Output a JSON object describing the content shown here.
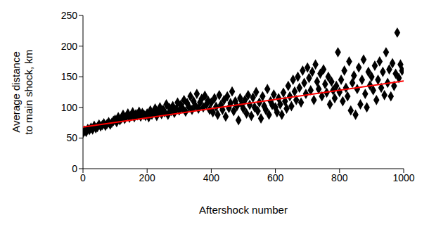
{
  "chart_data": {
    "type": "scatter",
    "xlabel": "Aftershock number",
    "ylabel": [
      "Average distance",
      "to main shock, km"
    ],
    "xlim": [
      0,
      1000
    ],
    "xticks": [
      0,
      200,
      400,
      600,
      800,
      1000
    ],
    "ylim": [
      0,
      250
    ],
    "yticks": [
      0,
      50,
      100,
      150,
      200,
      250
    ],
    "grid": false,
    "series": [
      {
        "type": "scatter",
        "color": "#000000",
        "marker": "diamond",
        "x": [
          0,
          5,
          10,
          15,
          20,
          25,
          30,
          35,
          40,
          45,
          50,
          55,
          60,
          65,
          70,
          75,
          80,
          85,
          90,
          95,
          100,
          105,
          110,
          115,
          120,
          125,
          130,
          135,
          140,
          145,
          150,
          155,
          160,
          165,
          170,
          175,
          180,
          185,
          190,
          195,
          200,
          205,
          210,
          215,
          220,
          225,
          230,
          235,
          240,
          245,
          250,
          255,
          260,
          265,
          270,
          275,
          280,
          285,
          290,
          295,
          300,
          305,
          310,
          315,
          320,
          325,
          330,
          335,
          340,
          345,
          350,
          355,
          360,
          365,
          370,
          375,
          380,
          385,
          390,
          395,
          400,
          405,
          410,
          415,
          420,
          425,
          430,
          435,
          440,
          445,
          450,
          455,
          460,
          465,
          470,
          475,
          480,
          485,
          490,
          495,
          500,
          505,
          510,
          515,
          520,
          525,
          530,
          535,
          540,
          545,
          550,
          555,
          560,
          565,
          570,
          575,
          580,
          585,
          590,
          595,
          600,
          605,
          610,
          615,
          620,
          625,
          630,
          635,
          640,
          645,
          650,
          655,
          660,
          665,
          670,
          675,
          680,
          685,
          690,
          695,
          700,
          705,
          710,
          715,
          720,
          725,
          730,
          735,
          740,
          745,
          750,
          755,
          760,
          765,
          770,
          775,
          780,
          785,
          790,
          795,
          800,
          805,
          810,
          815,
          820,
          825,
          830,
          835,
          840,
          845,
          850,
          855,
          860,
          865,
          870,
          875,
          880,
          885,
          890,
          895,
          900,
          905,
          910,
          915,
          920,
          925,
          930,
          935,
          940,
          945,
          950,
          955,
          960,
          965,
          970,
          975,
          980,
          985,
          990,
          995
        ],
        "values": [
          58,
          62,
          60,
          65,
          63,
          67,
          64,
          70,
          66,
          68,
          72,
          69,
          71,
          74,
          70,
          73,
          76,
          72,
          75,
          78,
          80,
          76,
          84,
          79,
          82,
          88,
          81,
          85,
          90,
          83,
          86,
          92,
          84,
          89,
          87,
          93,
          85,
          91,
          88,
          86,
          90,
          84,
          95,
          88,
          92,
          98,
          86,
          94,
          100,
          89,
          96,
          92,
          105,
          88,
          99,
          94,
          102,
          91,
          97,
          108,
          95,
          104,
          99,
          112,
          93,
          107,
          101,
          118,
          96,
          110,
          103,
          122,
          98,
          108,
          114,
          100,
          119,
          105,
          111,
          96,
          108,
          92,
          115,
          101,
          88,
          120,
          104,
          96,
          112,
          85,
          118,
          99,
          107,
          126,
          94,
          110,
          102,
          79,
          115,
          105,
          98,
          112,
          90,
          120,
          104,
          86,
          116,
          100,
          125,
          94,
          108,
          82,
          118,
          102,
          96,
          130,
          88,
          110,
          104,
          121,
          100,
          92,
          115,
          105,
          88,
          124,
          110,
          98,
          135,
          118,
          102,
          145,
          126,
          112,
          150,
          132,
          108,
          160,
          140,
          122,
          165,
          148,
          128,
          158,
          112,
          170,
          142,
          130,
          155,
          118,
          162,
          138,
          124,
          150,
          105,
          142,
          128,
          115,
          135,
          190,
          125,
          145,
          110,
          160,
          132,
          118,
          175,
          95,
          140,
          152,
          88,
          130,
          165,
          105,
          145,
          178,
          122,
          100,
          158,
          136,
          150,
          128,
          168,
          112,
          145,
          175,
          132,
          158,
          120,
          190,
          140,
          162,
          118,
          172,
          135,
          155,
          222,
          148,
          170,
          160
        ]
      },
      {
        "type": "line",
        "color": "#ff0000",
        "x": [
          0,
          1000
        ],
        "values": [
          68,
          143
        ]
      }
    ]
  }
}
